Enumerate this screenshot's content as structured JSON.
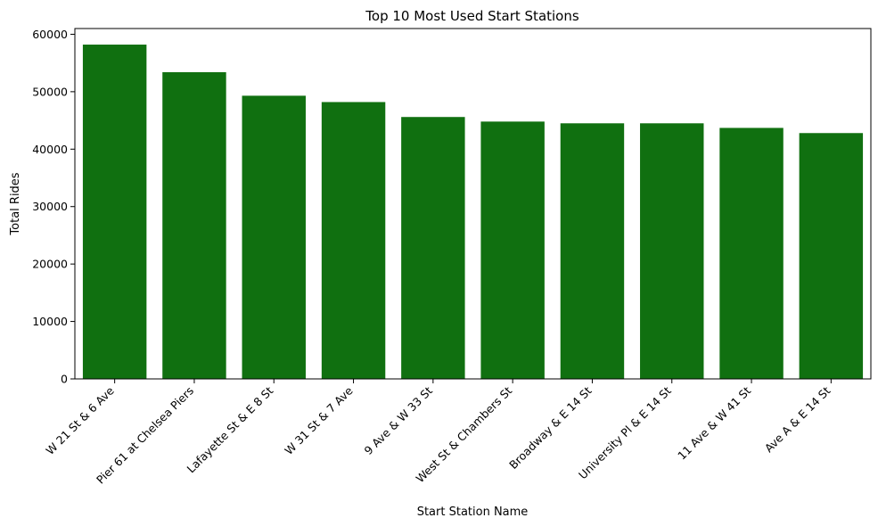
{
  "chart_data": {
    "type": "bar",
    "title": "Top 10 Most Used Start Stations",
    "xlabel": "Start Station Name",
    "ylabel": "Total Rides",
    "categories": [
      "W 21 St & 6 Ave",
      "Pier 61 at Chelsea Piers",
      "Lafayette St & E 8 St",
      "W 31 St & 7 Ave",
      "9 Ave & W 33 St",
      "West St & Chambers St",
      "Broadway & E 14 St",
      "University Pl & E 14 St",
      "11 Ave & W 41 St",
      "Ave A & E 14 St"
    ],
    "values": [
      58200,
      53400,
      49300,
      48200,
      45600,
      44800,
      44500,
      44500,
      43700,
      42800
    ],
    "ylim": [
      0,
      61000
    ],
    "yticks": [
      0,
      10000,
      20000,
      30000,
      40000,
      50000,
      60000
    ],
    "bar_color": "#107010",
    "grid": false,
    "legend": "none"
  }
}
